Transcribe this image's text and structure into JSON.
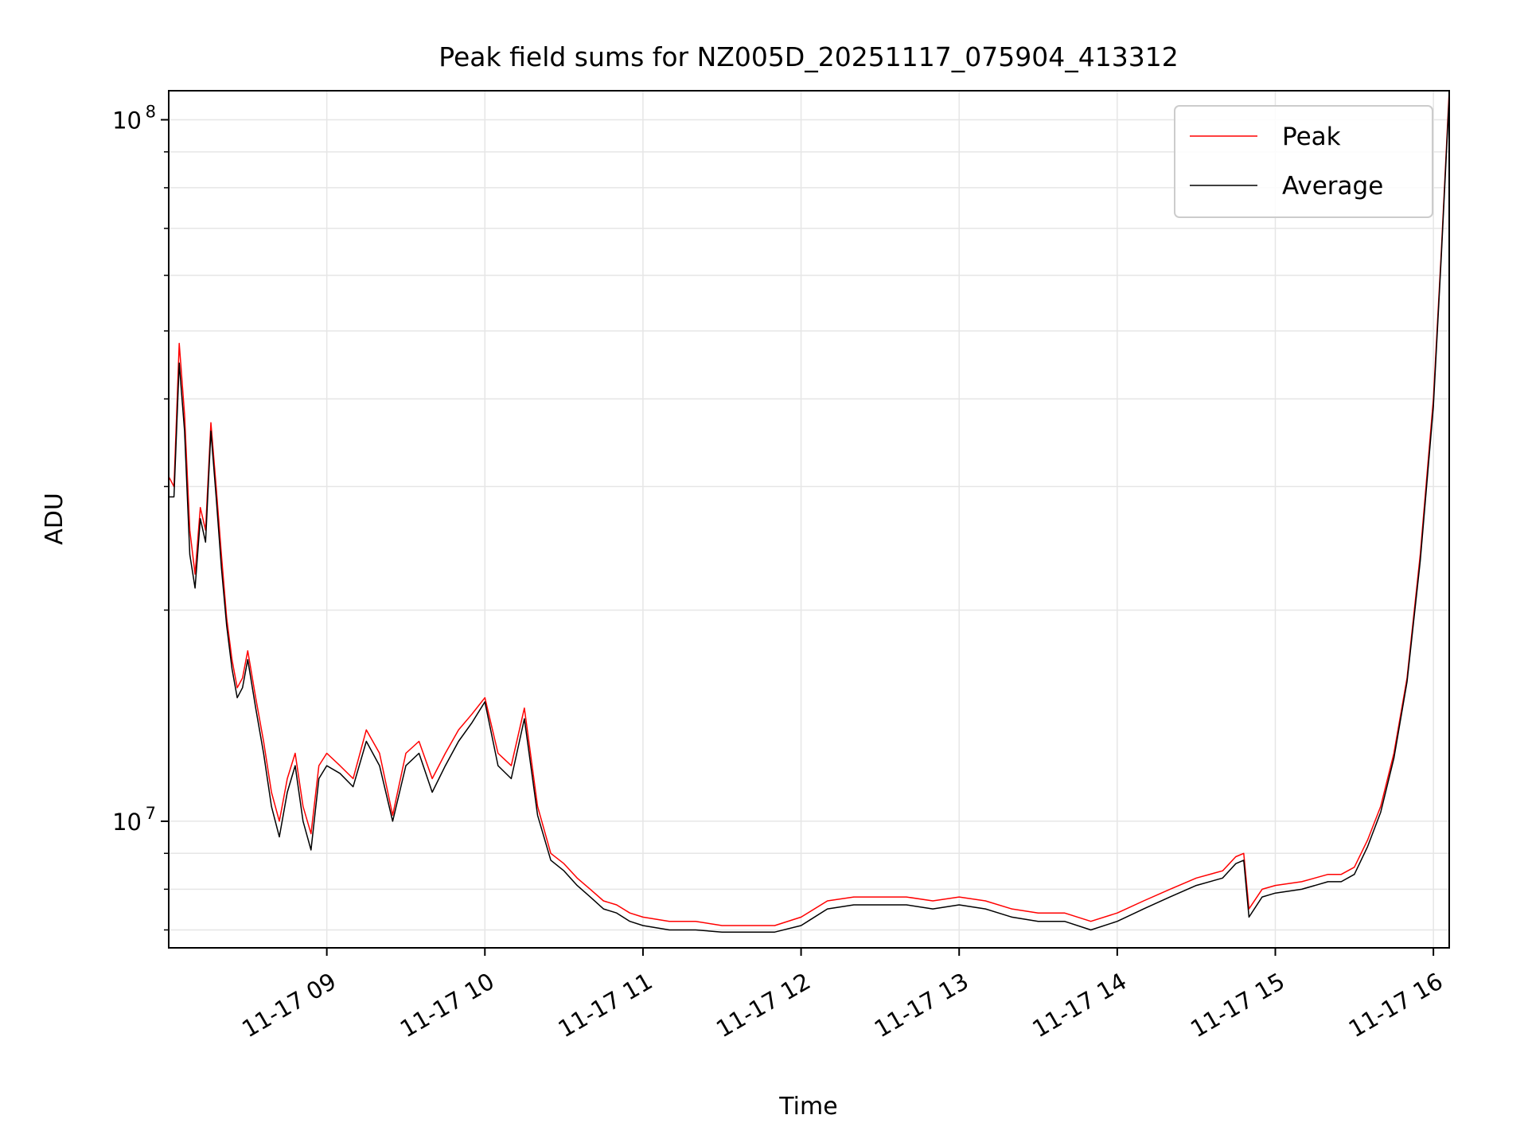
{
  "chart_data": {
    "type": "line",
    "title": "Peak field sums for NZ005D_20251117_075904_413312",
    "xlabel": "Time",
    "ylabel": "ADU",
    "yscale": "log",
    "xlim": [
      "11-17 08:00",
      "11-17 16:06"
    ],
    "ylim": [
      6600000,
      110000000
    ],
    "grid": true,
    "legend_position": "upper right",
    "x_tick_labels": [
      "11-17 09",
      "11-17 10",
      "11-17 11",
      "11-17 12",
      "11-17 13",
      "11-17 14",
      "11-17 15",
      "11-17 16"
    ],
    "y_tick_labels": [
      {
        "base": "10",
        "exp": "8",
        "value": 100000000
      },
      {
        "base": "10",
        "exp": "7",
        "value": 10000000
      }
    ],
    "series": [
      {
        "name": "Peak",
        "color": "#ff0000",
        "x": [
          "11-17 08:00",
          "11-17 08:02",
          "11-17 08:04",
          "11-17 08:06",
          "11-17 08:08",
          "11-17 08:10",
          "11-17 08:12",
          "11-17 08:14",
          "11-17 08:16",
          "11-17 08:18",
          "11-17 08:20",
          "11-17 08:22",
          "11-17 08:24",
          "11-17 08:26",
          "11-17 08:28",
          "11-17 08:30",
          "11-17 08:33",
          "11-17 08:36",
          "11-17 08:39",
          "11-17 08:42",
          "11-17 08:45",
          "11-17 08:48",
          "11-17 08:51",
          "11-17 08:54",
          "11-17 08:57",
          "11-17 09:00",
          "11-17 09:05",
          "11-17 09:10",
          "11-17 09:15",
          "11-17 09:20",
          "11-17 09:25",
          "11-17 09:30",
          "11-17 09:35",
          "11-17 09:40",
          "11-17 09:45",
          "11-17 09:50",
          "11-17 09:55",
          "11-17 10:00",
          "11-17 10:05",
          "11-17 10:10",
          "11-17 10:15",
          "11-17 10:20",
          "11-17 10:25",
          "11-17 10:30",
          "11-17 10:35",
          "11-17 10:40",
          "11-17 10:45",
          "11-17 10:50",
          "11-17 10:55",
          "11-17 11:00",
          "11-17 11:10",
          "11-17 11:20",
          "11-17 11:30",
          "11-17 11:40",
          "11-17 11:50",
          "11-17 12:00",
          "11-17 12:10",
          "11-17 12:20",
          "11-17 12:30",
          "11-17 12:40",
          "11-17 12:50",
          "11-17 13:00",
          "11-17 13:10",
          "11-17 13:20",
          "11-17 13:30",
          "11-17 13:40",
          "11-17 13:50",
          "11-17 14:00",
          "11-17 14:10",
          "11-17 14:20",
          "11-17 14:30",
          "11-17 14:40",
          "11-17 14:45",
          "11-17 14:48",
          "11-17 14:50",
          "11-17 14:55",
          "11-17 15:00",
          "11-17 15:10",
          "11-17 15:20",
          "11-17 15:25",
          "11-17 15:30",
          "11-17 15:35",
          "11-17 15:40",
          "11-17 15:45",
          "11-17 15:50",
          "11-17 15:55",
          "11-17 16:00",
          "11-17 16:03",
          "11-17 16:06"
        ],
        "y": [
          31000000,
          30000000,
          48000000,
          38000000,
          26000000,
          22500000,
          28000000,
          26000000,
          37000000,
          30000000,
          24000000,
          19500000,
          17000000,
          15500000,
          16000000,
          17500000,
          15000000,
          13000000,
          11000000,
          10000000,
          11500000,
          12500000,
          10500000,
          9600000,
          12000000,
          12500000,
          12000000,
          11500000,
          13500000,
          12500000,
          10200000,
          12500000,
          13000000,
          11500000,
          12500000,
          13500000,
          14200000,
          15000000,
          12500000,
          12000000,
          14500000,
          10500000,
          9000000,
          8700000,
          8300000,
          8000000,
          7700000,
          7600000,
          7400000,
          7300000,
          7200000,
          7200000,
          7100000,
          7100000,
          7100000,
          7300000,
          7700000,
          7800000,
          7800000,
          7800000,
          7700000,
          7800000,
          7700000,
          7500000,
          7400000,
          7400000,
          7200000,
          7400000,
          7700000,
          8000000,
          8300000,
          8500000,
          8900000,
          9000000,
          7500000,
          8000000,
          8100000,
          8200000,
          8400000,
          8400000,
          8600000,
          9400000,
          10500000,
          12500000,
          16000000,
          24000000,
          40000000,
          65000000,
          110000000
        ]
      },
      {
        "name": "Average",
        "color": "#000000",
        "x": [
          "11-17 08:00",
          "11-17 08:02",
          "11-17 08:04",
          "11-17 08:06",
          "11-17 08:08",
          "11-17 08:10",
          "11-17 08:12",
          "11-17 08:14",
          "11-17 08:16",
          "11-17 08:18",
          "11-17 08:20",
          "11-17 08:22",
          "11-17 08:24",
          "11-17 08:26",
          "11-17 08:28",
          "11-17 08:30",
          "11-17 08:33",
          "11-17 08:36",
          "11-17 08:39",
          "11-17 08:42",
          "11-17 08:45",
          "11-17 08:48",
          "11-17 08:51",
          "11-17 08:54",
          "11-17 08:57",
          "11-17 09:00",
          "11-17 09:05",
          "11-17 09:10",
          "11-17 09:15",
          "11-17 09:20",
          "11-17 09:25",
          "11-17 09:30",
          "11-17 09:35",
          "11-17 09:40",
          "11-17 09:45",
          "11-17 09:50",
          "11-17 09:55",
          "11-17 10:00",
          "11-17 10:05",
          "11-17 10:10",
          "11-17 10:15",
          "11-17 10:20",
          "11-17 10:25",
          "11-17 10:30",
          "11-17 10:35",
          "11-17 10:40",
          "11-17 10:45",
          "11-17 10:50",
          "11-17 10:55",
          "11-17 11:00",
          "11-17 11:10",
          "11-17 11:20",
          "11-17 11:30",
          "11-17 11:40",
          "11-17 11:50",
          "11-17 12:00",
          "11-17 12:10",
          "11-17 12:20",
          "11-17 12:30",
          "11-17 12:40",
          "11-17 12:50",
          "11-17 13:00",
          "11-17 13:10",
          "11-17 13:20",
          "11-17 13:30",
          "11-17 13:40",
          "11-17 13:50",
          "11-17 14:00",
          "11-17 14:10",
          "11-17 14:20",
          "11-17 14:30",
          "11-17 14:40",
          "11-17 14:45",
          "11-17 14:48",
          "11-17 14:50",
          "11-17 14:55",
          "11-17 15:00",
          "11-17 15:10",
          "11-17 15:20",
          "11-17 15:25",
          "11-17 15:30",
          "11-17 15:35",
          "11-17 15:40",
          "11-17 15:45",
          "11-17 15:50",
          "11-17 15:55",
          "11-17 16:00",
          "11-17 16:03",
          "11-17 16:06"
        ],
        "y": [
          29000000,
          29000000,
          45000000,
          36000000,
          24000000,
          21500000,
          27000000,
          25000000,
          36000000,
          29000000,
          23000000,
          19000000,
          16500000,
          15000000,
          15500000,
          17000000,
          14500000,
          12500000,
          10500000,
          9500000,
          11000000,
          12000000,
          10000000,
          9100000,
          11500000,
          12000000,
          11700000,
          11200000,
          13000000,
          12000000,
          10000000,
          12000000,
          12500000,
          11000000,
          12000000,
          13000000,
          13800000,
          14800000,
          12000000,
          11500000,
          14000000,
          10200000,
          8800000,
          8500000,
          8100000,
          7800000,
          7500000,
          7400000,
          7200000,
          7100000,
          7000000,
          7000000,
          6950000,
          6950000,
          6950000,
          7100000,
          7500000,
          7600000,
          7600000,
          7600000,
          7500000,
          7600000,
          7500000,
          7300000,
          7200000,
          7200000,
          7000000,
          7200000,
          7500000,
          7800000,
          8100000,
          8300000,
          8700000,
          8800000,
          7300000,
          7800000,
          7900000,
          8000000,
          8200000,
          8200000,
          8400000,
          9200000,
          10300000,
          12300000,
          15800000,
          23500000,
          39000000,
          64000000,
          108000000
        ]
      }
    ]
  }
}
